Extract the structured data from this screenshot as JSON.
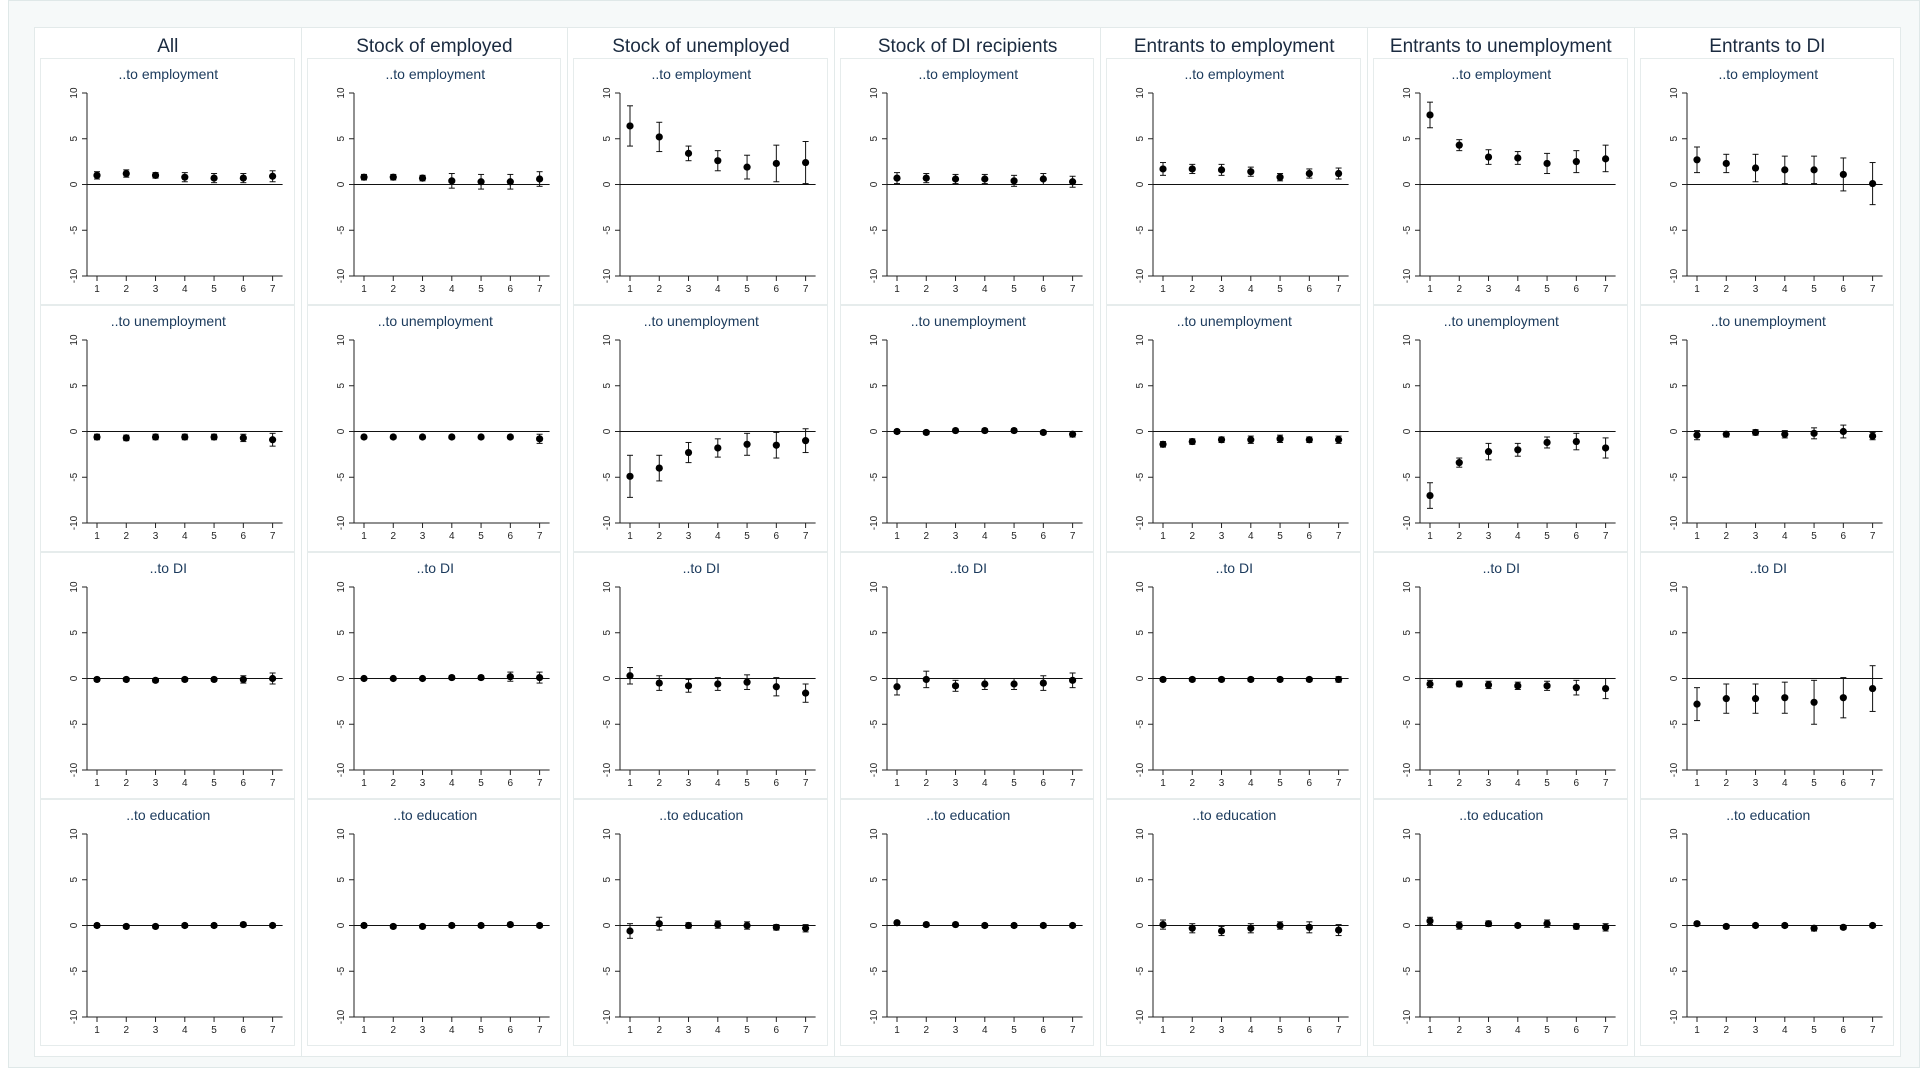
{
  "chart_data": {
    "type": "scatter",
    "x": [
      1,
      2,
      3,
      4,
      5,
      6,
      7
    ],
    "ylim": [
      -10,
      10
    ],
    "yticks": [
      -10,
      -5,
      0,
      5,
      10
    ],
    "columns": [
      "All",
      "Stock of employed",
      "Stock of unemployed",
      "Stock of DI recipients",
      "Entrants to employment",
      "Entrants to unemployment",
      "Entrants to DI"
    ],
    "rows": [
      "..to employment",
      "..to unemployment",
      "..to DI",
      "..to education"
    ],
    "panels": [
      [
        {
          "estimate": [
            1.0,
            1.2,
            1.0,
            0.8,
            0.7,
            0.7,
            0.9
          ],
          "ci_low": [
            0.6,
            0.8,
            0.7,
            0.3,
            0.2,
            0.2,
            0.3
          ],
          "ci_high": [
            1.4,
            1.6,
            1.3,
            1.3,
            1.2,
            1.2,
            1.5
          ]
        },
        {
          "estimate": [
            -0.6,
            -0.7,
            -0.6,
            -0.6,
            -0.6,
            -0.7,
            -0.9
          ],
          "ci_low": [
            -0.9,
            -1.0,
            -0.9,
            -0.9,
            -0.9,
            -1.1,
            -1.6
          ],
          "ci_high": [
            -0.3,
            -0.4,
            -0.3,
            -0.3,
            -0.3,
            -0.3,
            -0.2
          ]
        },
        {
          "estimate": [
            -0.1,
            -0.1,
            -0.2,
            -0.1,
            -0.1,
            -0.1,
            0.0
          ],
          "ci_low": [
            -0.3,
            -0.3,
            -0.4,
            -0.3,
            -0.3,
            -0.5,
            -0.6
          ],
          "ci_high": [
            0.1,
            0.1,
            0.0,
            0.1,
            0.1,
            0.3,
            0.6
          ]
        },
        {
          "estimate": [
            0.0,
            -0.1,
            -0.1,
            0.0,
            0.0,
            0.1,
            0.0
          ],
          "ci_low": [
            -0.2,
            -0.3,
            -0.3,
            -0.2,
            -0.2,
            -0.1,
            -0.2
          ],
          "ci_high": [
            0.2,
            0.1,
            0.1,
            0.2,
            0.2,
            0.3,
            0.2
          ]
        }
      ],
      [
        {
          "estimate": [
            0.8,
            0.8,
            0.7,
            0.4,
            0.3,
            0.3,
            0.6
          ],
          "ci_low": [
            0.5,
            0.5,
            0.4,
            -0.4,
            -0.5,
            -0.5,
            -0.2
          ],
          "ci_high": [
            1.1,
            1.1,
            1.0,
            1.2,
            1.1,
            1.1,
            1.4
          ]
        },
        {
          "estimate": [
            -0.6,
            -0.6,
            -0.6,
            -0.6,
            -0.6,
            -0.6,
            -0.8
          ],
          "ci_low": [
            -0.8,
            -0.8,
            -0.8,
            -0.8,
            -0.8,
            -0.8,
            -1.3
          ],
          "ci_high": [
            -0.4,
            -0.4,
            -0.4,
            -0.4,
            -0.4,
            -0.4,
            -0.3
          ]
        },
        {
          "estimate": [
            0.0,
            0.0,
            0.0,
            0.1,
            0.1,
            0.2,
            0.1
          ],
          "ci_low": [
            -0.1,
            -0.1,
            -0.1,
            -0.1,
            -0.1,
            -0.3,
            -0.5
          ],
          "ci_high": [
            0.1,
            0.1,
            0.1,
            0.3,
            0.3,
            0.7,
            0.7
          ]
        },
        {
          "estimate": [
            0.0,
            -0.1,
            -0.1,
            0.0,
            0.0,
            0.1,
            0.0
          ],
          "ci_low": [
            -0.2,
            -0.3,
            -0.3,
            -0.2,
            -0.2,
            -0.1,
            -0.2
          ],
          "ci_high": [
            0.2,
            0.1,
            0.1,
            0.2,
            0.2,
            0.3,
            0.2
          ]
        }
      ],
      [
        {
          "estimate": [
            6.4,
            5.2,
            3.4,
            2.6,
            1.9,
            2.3,
            2.4
          ],
          "ci_low": [
            4.2,
            3.6,
            2.6,
            1.5,
            0.6,
            0.3,
            0.1
          ],
          "ci_high": [
            8.6,
            6.8,
            4.2,
            3.7,
            3.2,
            4.3,
            4.7
          ]
        },
        {
          "estimate": [
            -4.9,
            -4.0,
            -2.3,
            -1.8,
            -1.4,
            -1.5,
            -1.0
          ],
          "ci_low": [
            -7.2,
            -5.4,
            -3.4,
            -2.8,
            -2.6,
            -2.9,
            -2.3
          ],
          "ci_high": [
            -2.6,
            -2.6,
            -1.2,
            -0.8,
            -0.2,
            -0.1,
            0.3
          ]
        },
        {
          "estimate": [
            0.3,
            -0.5,
            -0.8,
            -0.6,
            -0.4,
            -0.9,
            -1.6
          ],
          "ci_low": [
            -0.6,
            -1.3,
            -1.5,
            -1.3,
            -1.2,
            -1.9,
            -2.6
          ],
          "ci_high": [
            1.2,
            0.3,
            -0.1,
            0.1,
            0.4,
            0.1,
            -0.6
          ]
        },
        {
          "estimate": [
            -0.6,
            0.2,
            0.0,
            0.1,
            0.0,
            -0.2,
            -0.3
          ],
          "ci_low": [
            -1.4,
            -0.5,
            -0.3,
            -0.3,
            -0.4,
            -0.5,
            -0.7
          ],
          "ci_high": [
            0.2,
            0.9,
            0.3,
            0.5,
            0.4,
            0.1,
            0.1
          ]
        }
      ],
      [
        {
          "estimate": [
            0.7,
            0.7,
            0.6,
            0.6,
            0.4,
            0.6,
            0.3
          ],
          "ci_low": [
            0.1,
            0.2,
            0.1,
            0.1,
            -0.2,
            0.0,
            -0.3
          ],
          "ci_high": [
            1.3,
            1.2,
            1.1,
            1.1,
            1.0,
            1.2,
            0.9
          ]
        },
        {
          "estimate": [
            0.0,
            -0.1,
            0.1,
            0.1,
            0.1,
            -0.1,
            -0.3
          ],
          "ci_low": [
            -0.2,
            -0.3,
            -0.1,
            -0.1,
            -0.1,
            -0.3,
            -0.6
          ],
          "ci_high": [
            0.2,
            0.1,
            0.3,
            0.3,
            0.3,
            0.1,
            0.0
          ]
        },
        {
          "estimate": [
            -0.9,
            -0.1,
            -0.8,
            -0.6,
            -0.6,
            -0.5,
            -0.2
          ],
          "ci_low": [
            -1.8,
            -1.0,
            -1.4,
            -1.2,
            -1.2,
            -1.3,
            -1.0
          ],
          "ci_high": [
            0.0,
            0.8,
            -0.2,
            0.0,
            0.0,
            0.3,
            0.6
          ]
        },
        {
          "estimate": [
            0.3,
            0.1,
            0.1,
            0.0,
            0.0,
            0.0,
            0.0
          ],
          "ci_low": [
            0.1,
            -0.1,
            -0.1,
            -0.2,
            -0.2,
            -0.2,
            -0.2
          ],
          "ci_high": [
            0.5,
            0.3,
            0.3,
            0.2,
            0.2,
            0.2,
            0.2
          ]
        }
      ],
      [
        {
          "estimate": [
            1.7,
            1.7,
            1.6,
            1.4,
            0.8,
            1.2,
            1.2
          ],
          "ci_low": [
            1.0,
            1.2,
            1.0,
            0.9,
            0.4,
            0.7,
            0.6
          ],
          "ci_high": [
            2.4,
            2.2,
            2.2,
            1.9,
            1.2,
            1.7,
            1.8
          ]
        },
        {
          "estimate": [
            -1.4,
            -1.1,
            -0.9,
            -0.9,
            -0.8,
            -0.9,
            -0.9
          ],
          "ci_low": [
            -1.7,
            -1.4,
            -1.2,
            -1.3,
            -1.2,
            -1.2,
            -1.3
          ],
          "ci_high": [
            -1.1,
            -0.8,
            -0.6,
            -0.5,
            -0.4,
            -0.6,
            -0.5
          ]
        },
        {
          "estimate": [
            -0.1,
            -0.1,
            -0.1,
            -0.1,
            -0.1,
            -0.1,
            -0.1
          ],
          "ci_low": [
            -0.3,
            -0.3,
            -0.3,
            -0.3,
            -0.3,
            -0.3,
            -0.4
          ],
          "ci_high": [
            0.1,
            0.1,
            0.1,
            0.1,
            0.1,
            0.1,
            0.2
          ]
        },
        {
          "estimate": [
            0.1,
            -0.3,
            -0.6,
            -0.3,
            0.0,
            -0.2,
            -0.5
          ],
          "ci_low": [
            -0.4,
            -0.8,
            -1.1,
            -0.8,
            -0.4,
            -0.8,
            -1.1
          ],
          "ci_high": [
            0.6,
            0.2,
            -0.1,
            0.2,
            0.4,
            0.4,
            0.1
          ]
        }
      ],
      [
        {
          "estimate": [
            7.6,
            4.3,
            3.0,
            2.9,
            2.3,
            2.5,
            2.8
          ],
          "ci_low": [
            6.2,
            3.7,
            2.2,
            2.2,
            1.2,
            1.3,
            1.4
          ],
          "ci_high": [
            9.0,
            4.9,
            3.8,
            3.6,
            3.4,
            3.7,
            4.3
          ]
        },
        {
          "estimate": [
            -7.0,
            -3.4,
            -2.2,
            -2.0,
            -1.2,
            -1.1,
            -1.8
          ],
          "ci_low": [
            -8.4,
            -3.9,
            -3.1,
            -2.7,
            -1.8,
            -2.0,
            -2.9
          ],
          "ci_high": [
            -5.6,
            -2.9,
            -1.3,
            -1.3,
            -0.6,
            -0.2,
            -0.7
          ]
        },
        {
          "estimate": [
            -0.6,
            -0.6,
            -0.7,
            -0.8,
            -0.8,
            -1.0,
            -1.1
          ],
          "ci_low": [
            -1.0,
            -0.9,
            -1.1,
            -1.2,
            -1.3,
            -1.8,
            -2.2
          ],
          "ci_high": [
            -0.2,
            -0.3,
            -0.3,
            -0.4,
            -0.3,
            -0.2,
            0.0
          ]
        },
        {
          "estimate": [
            0.5,
            0.0,
            0.2,
            0.0,
            0.2,
            -0.1,
            -0.2
          ],
          "ci_low": [
            0.1,
            -0.4,
            -0.1,
            -0.2,
            -0.2,
            -0.4,
            -0.6
          ],
          "ci_high": [
            0.9,
            0.4,
            0.5,
            0.2,
            0.6,
            0.2,
            0.2
          ]
        }
      ],
      [
        {
          "estimate": [
            2.7,
            2.3,
            1.8,
            1.6,
            1.6,
            1.1,
            0.1
          ],
          "ci_low": [
            1.3,
            1.3,
            0.3,
            0.1,
            0.1,
            -0.7,
            -2.2
          ],
          "ci_high": [
            4.1,
            3.3,
            3.3,
            3.1,
            3.1,
            2.9,
            2.4
          ]
        },
        {
          "estimate": [
            -0.4,
            -0.3,
            -0.1,
            -0.3,
            -0.2,
            0.0,
            -0.5
          ],
          "ci_low": [
            -0.9,
            -0.6,
            -0.4,
            -0.7,
            -0.8,
            -0.7,
            -0.9
          ],
          "ci_high": [
            0.1,
            0.0,
            0.2,
            0.1,
            0.4,
            0.7,
            -0.1
          ]
        },
        {
          "estimate": [
            -2.8,
            -2.2,
            -2.2,
            -2.1,
            -2.6,
            -2.1,
            -1.1
          ],
          "ci_low": [
            -4.6,
            -3.8,
            -3.8,
            -3.8,
            -5.0,
            -4.3,
            -3.6
          ],
          "ci_high": [
            -1.0,
            -0.6,
            -0.6,
            -0.4,
            -0.2,
            0.1,
            1.4
          ]
        },
        {
          "estimate": [
            0.2,
            -0.1,
            0.0,
            0.0,
            -0.3,
            -0.2,
            0.0
          ],
          "ci_low": [
            0.0,
            -0.3,
            -0.2,
            -0.2,
            -0.6,
            -0.4,
            -0.2
          ],
          "ci_high": [
            0.4,
            0.1,
            0.2,
            0.2,
            0.0,
            0.0,
            0.2
          ]
        }
      ]
    ]
  }
}
